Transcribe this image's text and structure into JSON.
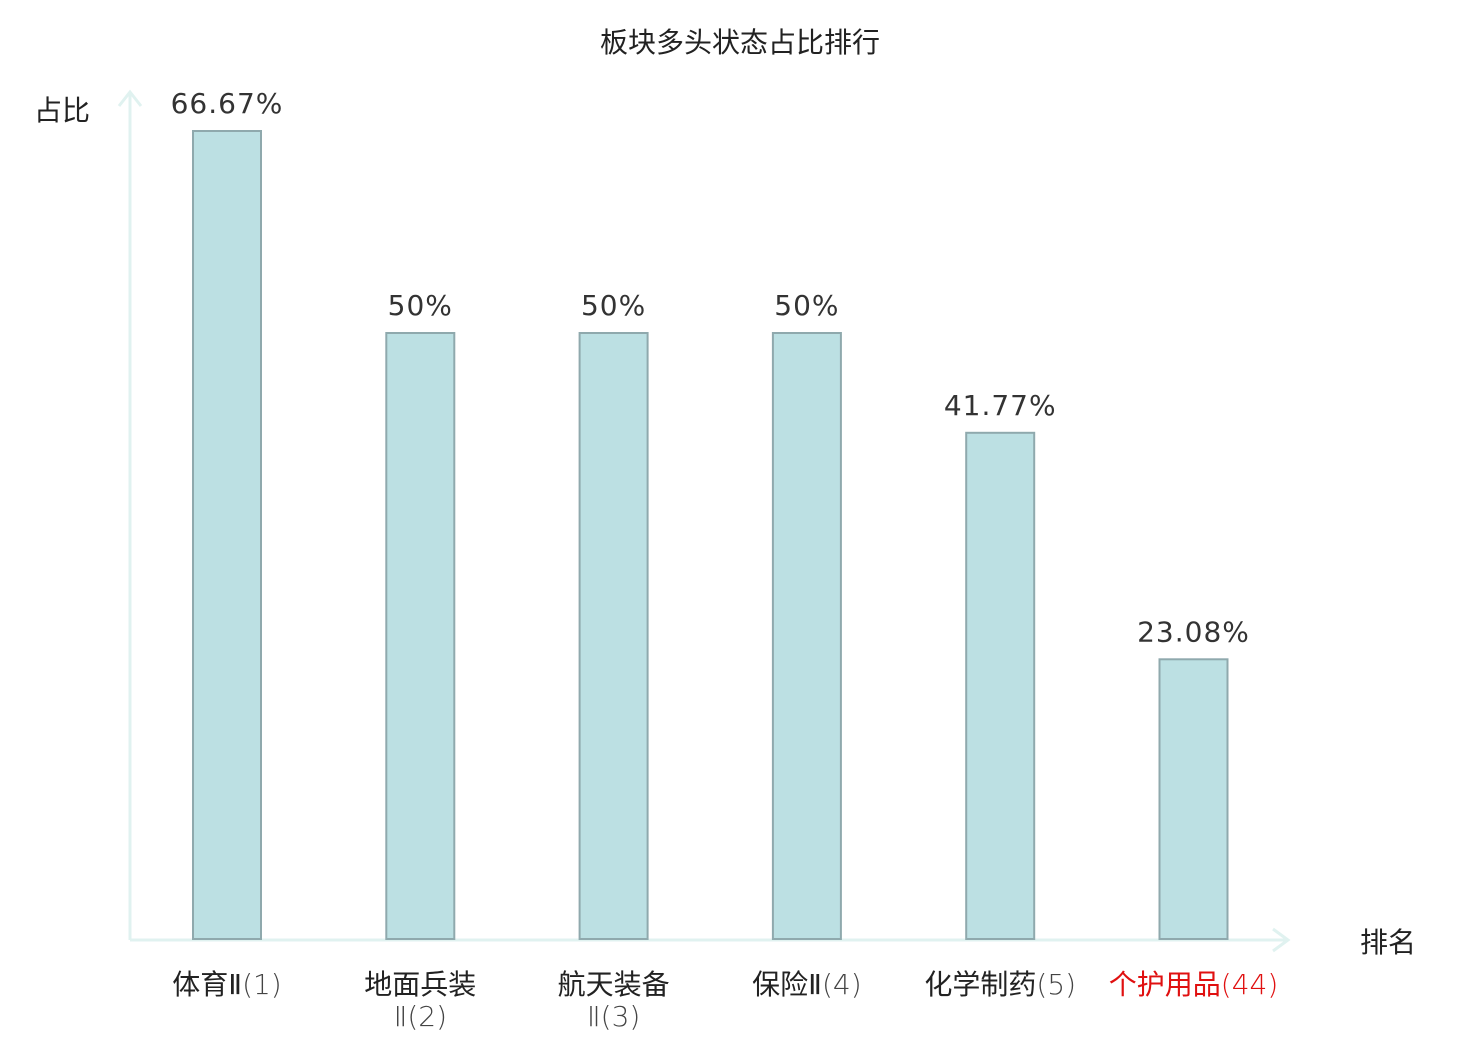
{
  "chart_data": {
    "type": "bar",
    "title": "板块多头状态占比排行",
    "ylabel": "占比",
    "xlabel": "排名",
    "ylim": [
      0,
      70
    ],
    "grid": false,
    "categories": [
      {
        "name": "体育Ⅱ",
        "rank": "(1)",
        "highlight": false
      },
      {
        "name": "地面兵装Ⅱ",
        "rank": "(2)",
        "highlight": false
      },
      {
        "name": "航天装备Ⅱ",
        "rank": "(3)",
        "highlight": false
      },
      {
        "name": "保险Ⅱ",
        "rank": "(4)",
        "highlight": false
      },
      {
        "name": "化学制药",
        "rank": "(5)",
        "highlight": false
      },
      {
        "name": "个护用品",
        "rank": "(44)",
        "highlight": true
      }
    ],
    "values": [
      66.67,
      50,
      50,
      50,
      41.77,
      23.08
    ],
    "value_labels": [
      "66.67%",
      "50%",
      "50%",
      "50%",
      "41.77%",
      "23.08%"
    ],
    "colors": {
      "bar_fill": "#bce0e3",
      "bar_stroke": "#8fa9ad",
      "axis": "#e0f2f0",
      "highlight_text": "#e01010"
    }
  }
}
